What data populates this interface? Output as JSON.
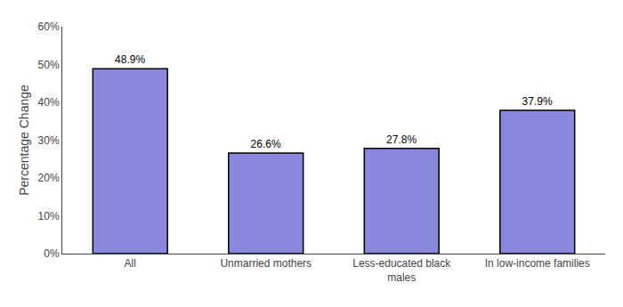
{
  "chart_data": {
    "type": "bar",
    "categories": [
      "All",
      "Unmarried mothers",
      "Less-educated black\nmales",
      "In low-income families"
    ],
    "values": [
      48.9,
      26.6,
      27.8,
      37.9
    ],
    "value_labels": [
      "48.9%",
      "26.6%",
      "27.8%",
      "37.9%"
    ],
    "data_labels": true,
    "color": "#8888dd",
    "ylabel": "Percentage Change",
    "ylim": [
      0,
      60
    ],
    "yticks": [
      {
        "value": 0,
        "label": "0%"
      },
      {
        "value": 10,
        "label": "10%"
      },
      {
        "value": 20,
        "label": "20%"
      },
      {
        "value": 30,
        "label": "30%"
      },
      {
        "value": 40,
        "label": "40%"
      },
      {
        "value": 50,
        "label": "50%"
      },
      {
        "value": 60,
        "label": "60%"
      }
    ],
    "grid": false
  }
}
